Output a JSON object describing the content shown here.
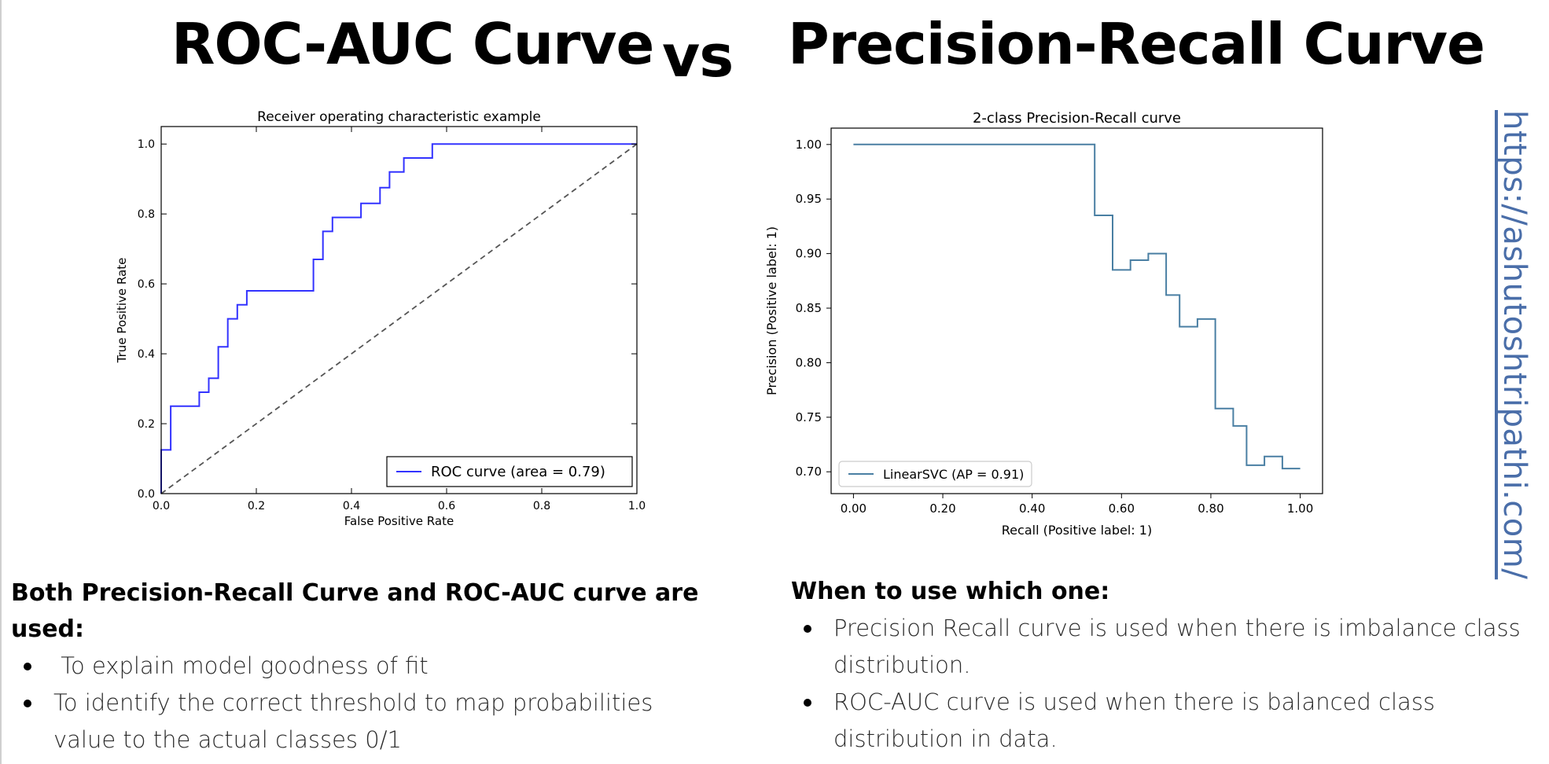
{
  "header": {
    "title_left": "ROC-AUC Curve",
    "vs": "vs",
    "title_right": "Precision-Recall Curve"
  },
  "side_link": {
    "text": "https://ashutoshtripathi.com/"
  },
  "chart_data": [
    {
      "type": "line",
      "title": "Receiver operating characteristic example",
      "xlabel": "False Positive Rate",
      "ylabel": "True Positive Rate",
      "xlim": [
        0,
        1
      ],
      "ylim": [
        0,
        1.05
      ],
      "xticks": [
        0.0,
        0.2,
        0.4,
        0.6,
        0.8,
        1.0
      ],
      "yticks": [
        0.0,
        0.2,
        0.4,
        0.6,
        0.8,
        1.0
      ],
      "tick_format": 1,
      "grid": false,
      "legend_position": "lower-right",
      "series": [
        {
          "name": "ROC curve (area = 0.79)",
          "color": "#3333ff",
          "style": "solid",
          "x": [
            0.0,
            0.0,
            0.02,
            0.02,
            0.08,
            0.08,
            0.1,
            0.1,
            0.12,
            0.12,
            0.14,
            0.14,
            0.16,
            0.16,
            0.18,
            0.18,
            0.32,
            0.32,
            0.34,
            0.34,
            0.36,
            0.36,
            0.42,
            0.42,
            0.46,
            0.46,
            0.48,
            0.48,
            0.51,
            0.51,
            0.57,
            0.57,
            1.0
          ],
          "y": [
            0.0,
            0.125,
            0.125,
            0.25,
            0.25,
            0.29,
            0.29,
            0.33,
            0.33,
            0.42,
            0.42,
            0.5,
            0.5,
            0.54,
            0.54,
            0.58,
            0.58,
            0.67,
            0.67,
            0.75,
            0.75,
            0.79,
            0.79,
            0.83,
            0.83,
            0.875,
            0.875,
            0.92,
            0.92,
            0.96,
            0.96,
            1.0,
            1.0
          ]
        },
        {
          "name": "",
          "color": "#555555",
          "style": "dashed",
          "x": [
            0,
            1
          ],
          "y": [
            0,
            1
          ]
        }
      ]
    },
    {
      "type": "line",
      "title": "2-class Precision-Recall curve",
      "xlabel": "Recall (Positive label: 1)",
      "ylabel": "Precision (Positive label: 1)",
      "xlim": [
        -0.05,
        1.05
      ],
      "ylim": [
        0.68,
        1.015
      ],
      "xticks": [
        0.0,
        0.2,
        0.4,
        0.6,
        0.8,
        1.0
      ],
      "yticks": [
        0.7,
        0.75,
        0.8,
        0.85,
        0.9,
        0.95,
        1.0
      ],
      "tick_format": 2,
      "grid": false,
      "legend_position": "lower-left",
      "series": [
        {
          "name": "LinearSVC (AP = 0.91)",
          "color": "#4a7fa3",
          "style": "solid",
          "x": [
            0.0,
            0.54,
            0.54,
            0.58,
            0.58,
            0.62,
            0.62,
            0.66,
            0.66,
            0.7,
            0.7,
            0.73,
            0.73,
            0.77,
            0.77,
            0.81,
            0.81,
            0.85,
            0.85,
            0.88,
            0.88,
            0.92,
            0.92,
            0.96,
            0.96,
            1.0
          ],
          "y": [
            1.0,
            1.0,
            0.935,
            0.935,
            0.885,
            0.885,
            0.894,
            0.894,
            0.9,
            0.9,
            0.862,
            0.862,
            0.833,
            0.833,
            0.84,
            0.84,
            0.758,
            0.758,
            0.742,
            0.742,
            0.706,
            0.706,
            0.714,
            0.714,
            0.703,
            0.703
          ]
        }
      ]
    }
  ],
  "left_text": {
    "heading_line1": "Both Precision-Recall Curve and ROC-AUC curve are",
    "heading_line2": "used:",
    "items": [
      " To explain model goodness of fit",
      "To identify the correct threshold to map probabilities",
      "value to the actual classes 0/1"
    ]
  },
  "right_text": {
    "heading": "When to use which one:",
    "items": [
      "Precision Recall curve is used when there is imbalance class",
      "distribution.",
      "ROC-AUC curve is used when there is balanced class",
      "distribution in data."
    ]
  }
}
